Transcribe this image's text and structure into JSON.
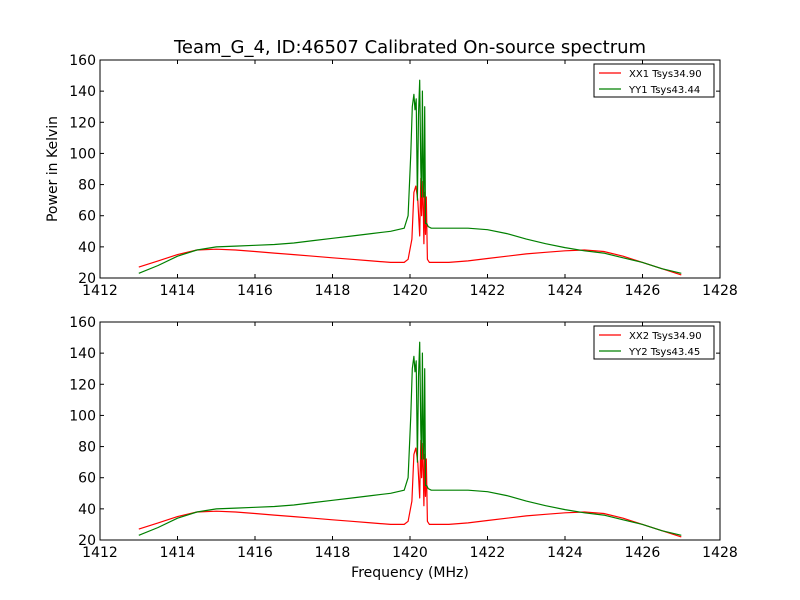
{
  "title": "Team_G_4, ID:46507 Calibrated On-source spectrum",
  "colors": {
    "red": "#ff0000",
    "green": "#008000"
  },
  "chart_data": [
    {
      "type": "line",
      "title": "Team_G_4, ID:46507 Calibrated On-source spectrum",
      "xlabel": "",
      "ylabel": "Power in Kelvin",
      "xlim": [
        1412,
        1428
      ],
      "ylim": [
        20,
        160
      ],
      "xticks": [
        "1412",
        "1414",
        "1416",
        "1418",
        "1420",
        "1422",
        "1424",
        "1426",
        "1428"
      ],
      "yticks": [
        "20",
        "40",
        "60",
        "80",
        "100",
        "120",
        "140",
        "160"
      ],
      "grid": false,
      "legend_position": "top-right",
      "series": [
        {
          "name": "XX1 Tsys34.90",
          "color": "#ff0000",
          "x": [
            1413.0,
            1413.5,
            1414.0,
            1414.5,
            1415.0,
            1415.5,
            1416.0,
            1416.5,
            1417.0,
            1417.5,
            1418.0,
            1418.5,
            1419.0,
            1419.5,
            1419.85,
            1419.95,
            1420.05,
            1420.1,
            1420.15,
            1420.2,
            1420.25,
            1420.28,
            1420.3,
            1420.33,
            1420.36,
            1420.38,
            1420.4,
            1420.42,
            1420.45,
            1420.5,
            1421.0,
            1421.5,
            1422.0,
            1422.5,
            1423.0,
            1423.5,
            1424.0,
            1424.5,
            1425.0,
            1425.5,
            1426.0,
            1426.5,
            1427.0
          ],
          "y": [
            27,
            31,
            35,
            38,
            38.5,
            38,
            37,
            36,
            35,
            34,
            33,
            32,
            31,
            30,
            30,
            32,
            45,
            75,
            79,
            70,
            47,
            84,
            60,
            82,
            42,
            75,
            48,
            72,
            32,
            30,
            30,
            31,
            32.5,
            34,
            35.5,
            36.5,
            37.5,
            38,
            37,
            34,
            30,
            26,
            22
          ]
        },
        {
          "name": "YY1 Tsys43.44",
          "color": "#008000",
          "x": [
            1413.0,
            1413.5,
            1414.0,
            1414.5,
            1415.0,
            1415.5,
            1416.0,
            1416.5,
            1417.0,
            1417.5,
            1418.0,
            1418.5,
            1419.0,
            1419.5,
            1419.85,
            1419.95,
            1420.02,
            1420.06,
            1420.1,
            1420.13,
            1420.16,
            1420.19,
            1420.22,
            1420.25,
            1420.28,
            1420.3,
            1420.32,
            1420.34,
            1420.36,
            1420.38,
            1420.4,
            1420.43,
            1420.47,
            1420.55,
            1420.8,
            1421.0,
            1421.5,
            1422.0,
            1422.5,
            1423.0,
            1423.5,
            1424.0,
            1424.5,
            1425.0,
            1425.5,
            1426.0,
            1426.5,
            1427.0
          ],
          "y": [
            23,
            28,
            34,
            38,
            40,
            40.5,
            41,
            41.5,
            42.5,
            44,
            45.5,
            47,
            48.5,
            50,
            52,
            60,
            100,
            130,
            138,
            128,
            135,
            70,
            125,
            147,
            90,
            72,
            140,
            85,
            72,
            130,
            55,
            55,
            53,
            52,
            52,
            52,
            52,
            51,
            48.5,
            45,
            42,
            39.5,
            37.5,
            36,
            33,
            30,
            26,
            23
          ]
        }
      ]
    },
    {
      "type": "line",
      "title": "",
      "xlabel": "Frequency (MHz)",
      "ylabel": "",
      "xlim": [
        1412,
        1428
      ],
      "ylim": [
        20,
        160
      ],
      "xticks": [
        "1412",
        "1414",
        "1416",
        "1418",
        "1420",
        "1422",
        "1424",
        "1426",
        "1428"
      ],
      "yticks": [
        "20",
        "40",
        "60",
        "80",
        "100",
        "120",
        "140",
        "160"
      ],
      "grid": false,
      "legend_position": "top-right",
      "series": [
        {
          "name": "XX2 Tsys34.90",
          "color": "#ff0000",
          "x": [
            1413.0,
            1413.5,
            1414.0,
            1414.5,
            1415.0,
            1415.5,
            1416.0,
            1416.5,
            1417.0,
            1417.5,
            1418.0,
            1418.5,
            1419.0,
            1419.5,
            1419.85,
            1419.95,
            1420.05,
            1420.1,
            1420.15,
            1420.2,
            1420.25,
            1420.28,
            1420.3,
            1420.33,
            1420.36,
            1420.38,
            1420.4,
            1420.42,
            1420.45,
            1420.5,
            1421.0,
            1421.5,
            1422.0,
            1422.5,
            1423.0,
            1423.5,
            1424.0,
            1424.5,
            1425.0,
            1425.5,
            1426.0,
            1426.5,
            1427.0
          ],
          "y": [
            27,
            31,
            35,
            38,
            38.5,
            38,
            37,
            36,
            35,
            34,
            33,
            32,
            31,
            30,
            30,
            32,
            45,
            75,
            79,
            70,
            47,
            84,
            60,
            82,
            42,
            75,
            48,
            72,
            32,
            30,
            30,
            31,
            32.5,
            34,
            35.5,
            36.5,
            37.5,
            38,
            37,
            34,
            30,
            26,
            22
          ]
        },
        {
          "name": "YY2 Tsys43.45",
          "color": "#008000",
          "x": [
            1413.0,
            1413.5,
            1414.0,
            1414.5,
            1415.0,
            1415.5,
            1416.0,
            1416.5,
            1417.0,
            1417.5,
            1418.0,
            1418.5,
            1419.0,
            1419.5,
            1419.85,
            1419.95,
            1420.02,
            1420.06,
            1420.1,
            1420.13,
            1420.16,
            1420.19,
            1420.22,
            1420.25,
            1420.28,
            1420.3,
            1420.32,
            1420.34,
            1420.36,
            1420.38,
            1420.4,
            1420.43,
            1420.47,
            1420.55,
            1420.8,
            1421.0,
            1421.5,
            1422.0,
            1422.5,
            1423.0,
            1423.5,
            1424.0,
            1424.5,
            1425.0,
            1425.5,
            1426.0,
            1426.5,
            1427.0
          ],
          "y": [
            23,
            28,
            34,
            38,
            40,
            40.5,
            41,
            41.5,
            42.5,
            44,
            45.5,
            47,
            48.5,
            50,
            52,
            60,
            100,
            130,
            138,
            128,
            135,
            70,
            125,
            147,
            90,
            72,
            140,
            85,
            72,
            130,
            55,
            55,
            53,
            52,
            52,
            52,
            52,
            51,
            48.5,
            45,
            42,
            39.5,
            37.5,
            36,
            33,
            30,
            26,
            23
          ]
        }
      ]
    }
  ]
}
